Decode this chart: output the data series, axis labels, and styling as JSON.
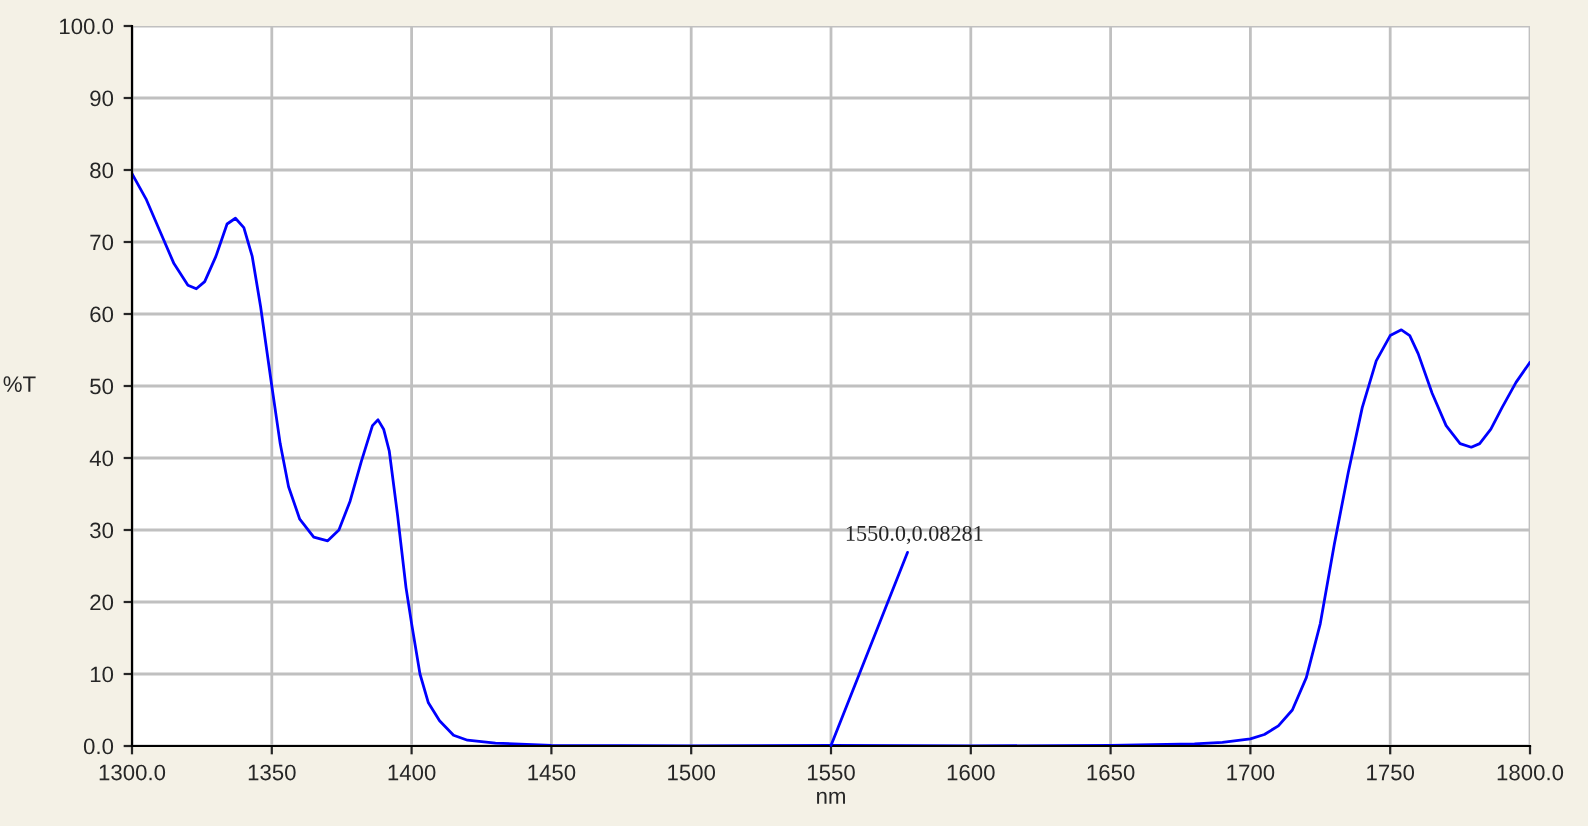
{
  "chart_data": {
    "type": "line",
    "xlabel": "nm",
    "ylabel": "%T",
    "x": [
      1300,
      1305,
      1310,
      1315,
      1320,
      1323,
      1326,
      1330,
      1334,
      1337,
      1340,
      1343,
      1346,
      1350,
      1353,
      1356,
      1360,
      1365,
      1370,
      1374,
      1378,
      1382,
      1386,
      1388,
      1390,
      1392,
      1395,
      1398,
      1400,
      1403,
      1406,
      1410,
      1415,
      1420,
      1430,
      1450,
      1500,
      1550,
      1600,
      1650,
      1680,
      1690,
      1700,
      1705,
      1710,
      1715,
      1720,
      1725,
      1730,
      1735,
      1740,
      1745,
      1750,
      1754,
      1757,
      1760,
      1765,
      1770,
      1775,
      1779,
      1782,
      1786,
      1790,
      1795,
      1800
    ],
    "series": [
      {
        "color": "#0000ff",
        "values": [
          79.5,
          76,
          71.5,
          67,
          64,
          63.5,
          64.5,
          68,
          72.5,
          73.3,
          72,
          68,
          61,
          50,
          42,
          36,
          31.5,
          29,
          28.5,
          30,
          34,
          39.5,
          44.5,
          45.3,
          44,
          41,
          32,
          22,
          17,
          10,
          6,
          3.5,
          1.5,
          0.8,
          0.4,
          0.1,
          0,
          0.1,
          0,
          0.1,
          0.3,
          0.5,
          1,
          1.6,
          2.8,
          5,
          9.5,
          17,
          28,
          38,
          47,
          53.5,
          57,
          57.8,
          57,
          54.5,
          49,
          44.5,
          42,
          41.5,
          42,
          44,
          47,
          50.5,
          53.3
        ]
      }
    ],
    "xlim": [
      1300,
      1800
    ],
    "ylim": [
      0,
      100
    ],
    "xticks": [
      {
        "value": 1300,
        "label": "1300.0"
      },
      1350,
      1400,
      1450,
      1500,
      1550,
      1600,
      1650,
      1700,
      1750,
      {
        "value": 1800,
        "label": "1800.0"
      }
    ],
    "yticks": [
      {
        "value": 0,
        "label": "0.0"
      },
      10,
      20,
      30,
      40,
      50,
      60,
      70,
      80,
      90,
      {
        "value": 100,
        "label": "100.0"
      }
    ],
    "annotations": [
      {
        "text": "1550.0,0.08281",
        "x": 1550,
        "y": 0.08281
      }
    ],
    "grid": true,
    "legend": false,
    "marker": "none",
    "line_style": "solid"
  }
}
